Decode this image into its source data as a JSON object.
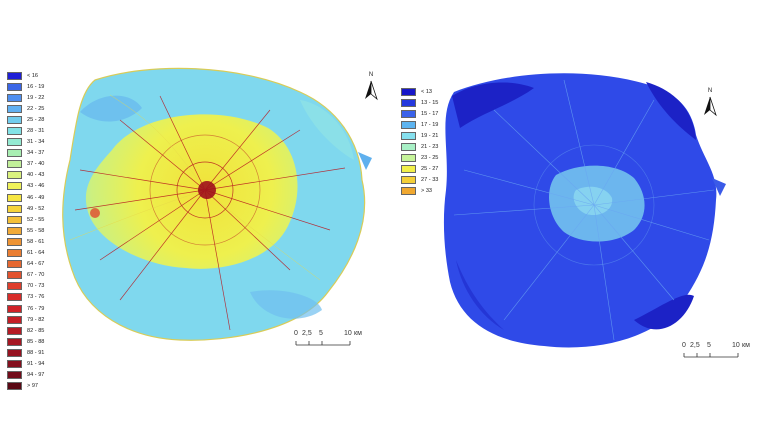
{
  "left_map": {
    "legend": [
      {
        "label": "< 16",
        "color": "#1f1fd6"
      },
      {
        "label": "16 - 19",
        "color": "#3b66e6"
      },
      {
        "label": "19 - 22",
        "color": "#4f8ff0"
      },
      {
        "label": "22 - 25",
        "color": "#62b1f2"
      },
      {
        "label": "25 - 28",
        "color": "#72cdee"
      },
      {
        "label": "28 - 31",
        "color": "#82e2e6"
      },
      {
        "label": "31 - 34",
        "color": "#94ead2"
      },
      {
        "label": "34 - 37",
        "color": "#a8eeb2"
      },
      {
        "label": "37 - 40",
        "color": "#c2f09a"
      },
      {
        "label": "40 - 43",
        "color": "#dbf27e"
      },
      {
        "label": "43 - 46",
        "color": "#f0f25a"
      },
      {
        "label": "46 - 49",
        "color": "#f6e642"
      },
      {
        "label": "49 - 52",
        "color": "#f6d43a"
      },
      {
        "label": "52 - 55",
        "color": "#f4c038"
      },
      {
        "label": "55 - 58",
        "color": "#f2aa36"
      },
      {
        "label": "58 - 61",
        "color": "#ee9434"
      },
      {
        "label": "61 - 64",
        "color": "#ea7e32"
      },
      {
        "label": "64 - 67",
        "color": "#e66830"
      },
      {
        "label": "67 - 70",
        "color": "#e2522e"
      },
      {
        "label": "70 - 73",
        "color": "#de3e2c"
      },
      {
        "label": "73 - 76",
        "color": "#d82c2a"
      },
      {
        "label": "76 - 79",
        "color": "#d02228"
      },
      {
        "label": "79 - 82",
        "color": "#c41e26"
      },
      {
        "label": "82 - 85",
        "color": "#b61a24"
      },
      {
        "label": "85 - 88",
        "color": "#a61622"
      },
      {
        "label": "88 - 91",
        "color": "#961220"
      },
      {
        "label": "91 - 94",
        "color": "#840f1d"
      },
      {
        "label": "94 - 97",
        "color": "#720c1a"
      },
      {
        "label": "> 97",
        "color": "#5a0814"
      }
    ],
    "north_label": "N",
    "scale": {
      "ticks": [
        "0",
        "2,5",
        "5",
        "10"
      ],
      "unit": "км"
    }
  },
  "right_map": {
    "legend": [
      {
        "label": "< 13",
        "color": "#1717c8"
      },
      {
        "label": "13 - 15",
        "color": "#2438de"
      },
      {
        "label": "15 - 17",
        "color": "#3a62ea"
      },
      {
        "label": "17 - 19",
        "color": "#5db4f0"
      },
      {
        "label": "19 - 21",
        "color": "#86e0ee"
      },
      {
        "label": "21 - 23",
        "color": "#a8f0c6"
      },
      {
        "label": "23 - 25",
        "color": "#c6f49a"
      },
      {
        "label": "25 - 27",
        "color": "#f2f04a"
      },
      {
        "label": "27 - 33",
        "color": "#f4cf38"
      },
      {
        "label": "> 33",
        "color": "#f0a830"
      }
    ],
    "north_label": "N",
    "scale": {
      "ticks": [
        "0",
        "2,5",
        "5",
        "10"
      ],
      "unit": "км"
    }
  }
}
